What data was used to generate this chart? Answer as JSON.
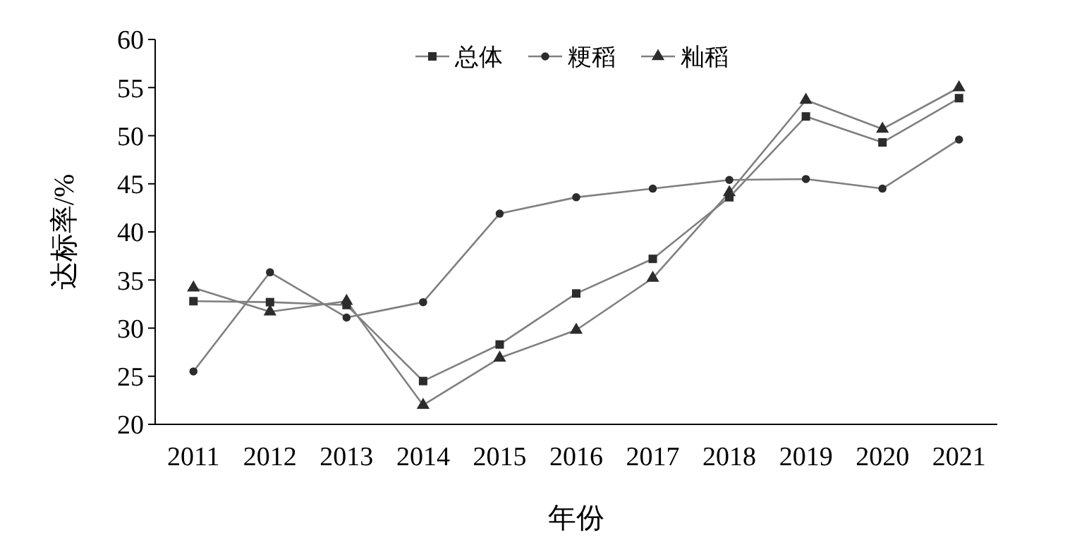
{
  "chart_data": {
    "type": "line",
    "xlabel": "年份",
    "ylabel": "达标率/%",
    "categories": [
      "2011",
      "2012",
      "2013",
      "2014",
      "2015",
      "2016",
      "2017",
      "2018",
      "2019",
      "2020",
      "2021"
    ],
    "ylim": [
      20,
      60
    ],
    "yticks": [
      20,
      25,
      30,
      35,
      40,
      45,
      50,
      55,
      60
    ],
    "grid": false,
    "legend": "top",
    "line_style": "solid",
    "series": [
      {
        "name": "总体",
        "color": "#808080",
        "marker": "square",
        "values": [
          32.8,
          32.7,
          32.4,
          24.5,
          28.3,
          33.6,
          37.2,
          43.6,
          52.0,
          49.3,
          53.9
        ]
      },
      {
        "name": "粳稻",
        "color": "#808080",
        "marker": "circle",
        "values": [
          25.5,
          35.8,
          31.1,
          32.7,
          41.9,
          43.6,
          44.5,
          45.4,
          45.5,
          44.5,
          49.6
        ]
      },
      {
        "name": "籼稻",
        "color": "#808080",
        "marker": "triangle",
        "values": [
          34.2,
          31.7,
          32.8,
          22.0,
          26.9,
          29.8,
          35.2,
          44.1,
          53.7,
          50.7,
          55.0
        ]
      }
    ]
  }
}
